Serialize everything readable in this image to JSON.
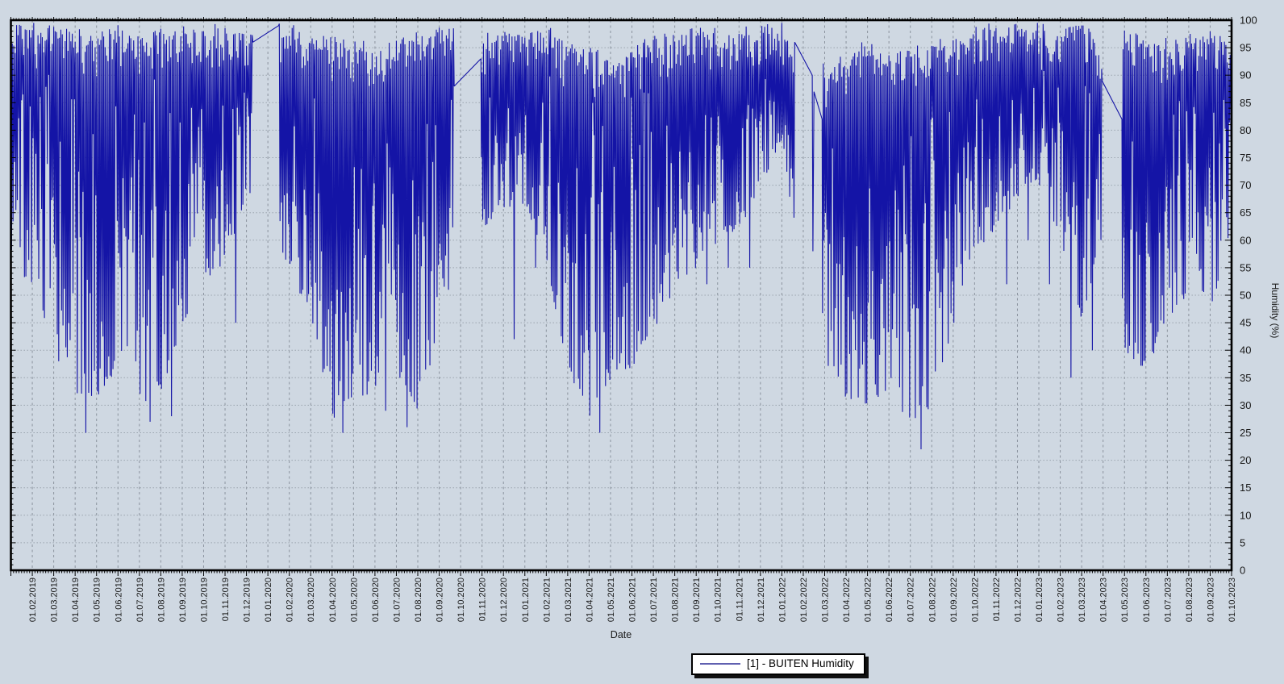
{
  "window": {
    "background_color": "#cfd8e2"
  },
  "chart_data": {
    "type": "line",
    "title": "",
    "xlabel": "Date",
    "ylabel": "Humidity (%)",
    "ylim": [
      0,
      100
    ],
    "y_tick_step": 5,
    "grid": true,
    "y_tick_labels": [
      "0",
      "5",
      "10",
      "15",
      "20",
      "25",
      "30",
      "35",
      "40",
      "45",
      "50",
      "55",
      "60",
      "65",
      "70",
      "75",
      "80",
      "85",
      "90",
      "95",
      "100"
    ],
    "x_tick_labels": [
      "01.02.2019",
      "01.03.2019",
      "01.04.2019",
      "01.05.2019",
      "01.06.2019",
      "01.07.2019",
      "01.08.2019",
      "01.09.2019",
      "01.10.2019",
      "01.11.2019",
      "01.12.2019",
      "01.01.2020",
      "01.02.2020",
      "01.03.2020",
      "01.04.2020",
      "01.05.2020",
      "01.06.2020",
      "01.07.2020",
      "01.08.2020",
      "01.09.2020",
      "01.10.2020",
      "01.11.2020",
      "01.12.2020",
      "01.01.2021",
      "01.02.2021",
      "01.03.2021",
      "01.04.2021",
      "01.05.2021",
      "01.06.2021",
      "01.07.2021",
      "01.08.2021",
      "01.09.2021",
      "01.10.2021",
      "01.11.2021",
      "01.12.2021",
      "01.01.2022",
      "01.02.2022",
      "01.03.2022",
      "01.04.2022",
      "01.05.2022",
      "01.06.2022",
      "01.07.2022",
      "01.08.2022",
      "01.09.2022",
      "01.10.2022",
      "01.11.2022",
      "01.12.2022",
      "01.01.2023",
      "01.02.2023",
      "01.03.2023",
      "01.04.2023",
      "01.05.2023",
      "01.06.2023",
      "01.07.2023",
      "01.08.2023",
      "01.09.2023",
      "01.10.2023"
    ],
    "legend": {
      "position": "bottom-center",
      "entries": [
        {
          "label": "[1] - BUITEN Humidity",
          "sample_color": "#6060b0"
        }
      ]
    },
    "colors": {
      "series": "#1414a6",
      "background": "#cfd8e2",
      "grid_vertical": "#8b939e",
      "grid_horizontal": "#97a0aa",
      "axis": "#000000",
      "text": "#1a1a1a"
    },
    "series": [
      {
        "name": "[1] - BUITEN Humidity",
        "color": "#1414a6",
        "x_start": "01.01.2019",
        "x_end": "01.10.2023",
        "sampling_note": "dense noisy humidity trace summarized as monthly [low,high] envelope, values in %",
        "monthly_envelope": [
          [
            58,
            97
          ],
          [
            50,
            98
          ],
          [
            40,
            97
          ],
          [
            30,
            96
          ],
          [
            31,
            96
          ],
          [
            36,
            97
          ],
          [
            30,
            96
          ],
          [
            32,
            96
          ],
          [
            45,
            97
          ],
          [
            52,
            97
          ],
          [
            56,
            97
          ],
          [
            68,
            97
          ],
          [
            62,
            98
          ],
          [
            55,
            97
          ],
          [
            45,
            96
          ],
          [
            27,
            95
          ],
          [
            30,
            95
          ],
          [
            33,
            93
          ],
          [
            36,
            95
          ],
          [
            28,
            96
          ],
          [
            44,
            98
          ],
          [
            60,
            97
          ],
          [
            62,
            96
          ],
          [
            66,
            97
          ],
          [
            66,
            97
          ],
          [
            55,
            97
          ],
          [
            36,
            94
          ],
          [
            28,
            93
          ],
          [
            35,
            91
          ],
          [
            37,
            93
          ],
          [
            44,
            95
          ],
          [
            50,
            96
          ],
          [
            55,
            97
          ],
          [
            60,
            96
          ],
          [
            62,
            97
          ],
          [
            70,
            97
          ],
          [
            78,
            98
          ],
          [
            45,
            85
          ],
          [
            38,
            90
          ],
          [
            31,
            93
          ],
          [
            29,
            95
          ],
          [
            32,
            92
          ],
          [
            26,
            93
          ],
          [
            30,
            94
          ],
          [
            45,
            95
          ],
          [
            58,
            97
          ],
          [
            62,
            97
          ],
          [
            68,
            98
          ],
          [
            70,
            98
          ],
          [
            60,
            96
          ],
          [
            45,
            98
          ],
          [
            62,
            93
          ],
          [
            40,
            97
          ],
          [
            36,
            95
          ],
          [
            46,
            95
          ],
          [
            50,
            96
          ],
          [
            48,
            96
          ],
          [
            60,
            95
          ]
        ],
        "deep_dips": {
          "3": 25,
          "6": 27,
          "7": 28,
          "10": 45,
          "15": 25,
          "17": 29,
          "18": 26,
          "23": 42,
          "24": 55,
          "25": 50,
          "27": 25,
          "32": 52,
          "33": 55,
          "34": 55,
          "42": 22,
          "46": 52,
          "47": 60,
          "48": 52,
          "49": 35,
          "50": 40
        },
        "data_gaps_straight_lines": [
          {
            "points": [
              [
                11.3,
                96
              ],
              [
                12.5,
                99
              ]
            ]
          },
          {
            "points": [
              [
                20.7,
                88
              ],
              [
                21.95,
                93
              ]
            ]
          },
          {
            "points": [
              [
                36.6,
                96
              ],
              [
                37.42,
                90
              ],
              [
                37.45,
                58
              ],
              [
                37.5,
                87
              ],
              [
                37.88,
                82
              ]
            ]
          },
          {
            "points": [
              [
                50.95,
                89
              ],
              [
                51.88,
                82
              ]
            ]
          }
        ],
        "end_value": 91
      }
    ]
  }
}
